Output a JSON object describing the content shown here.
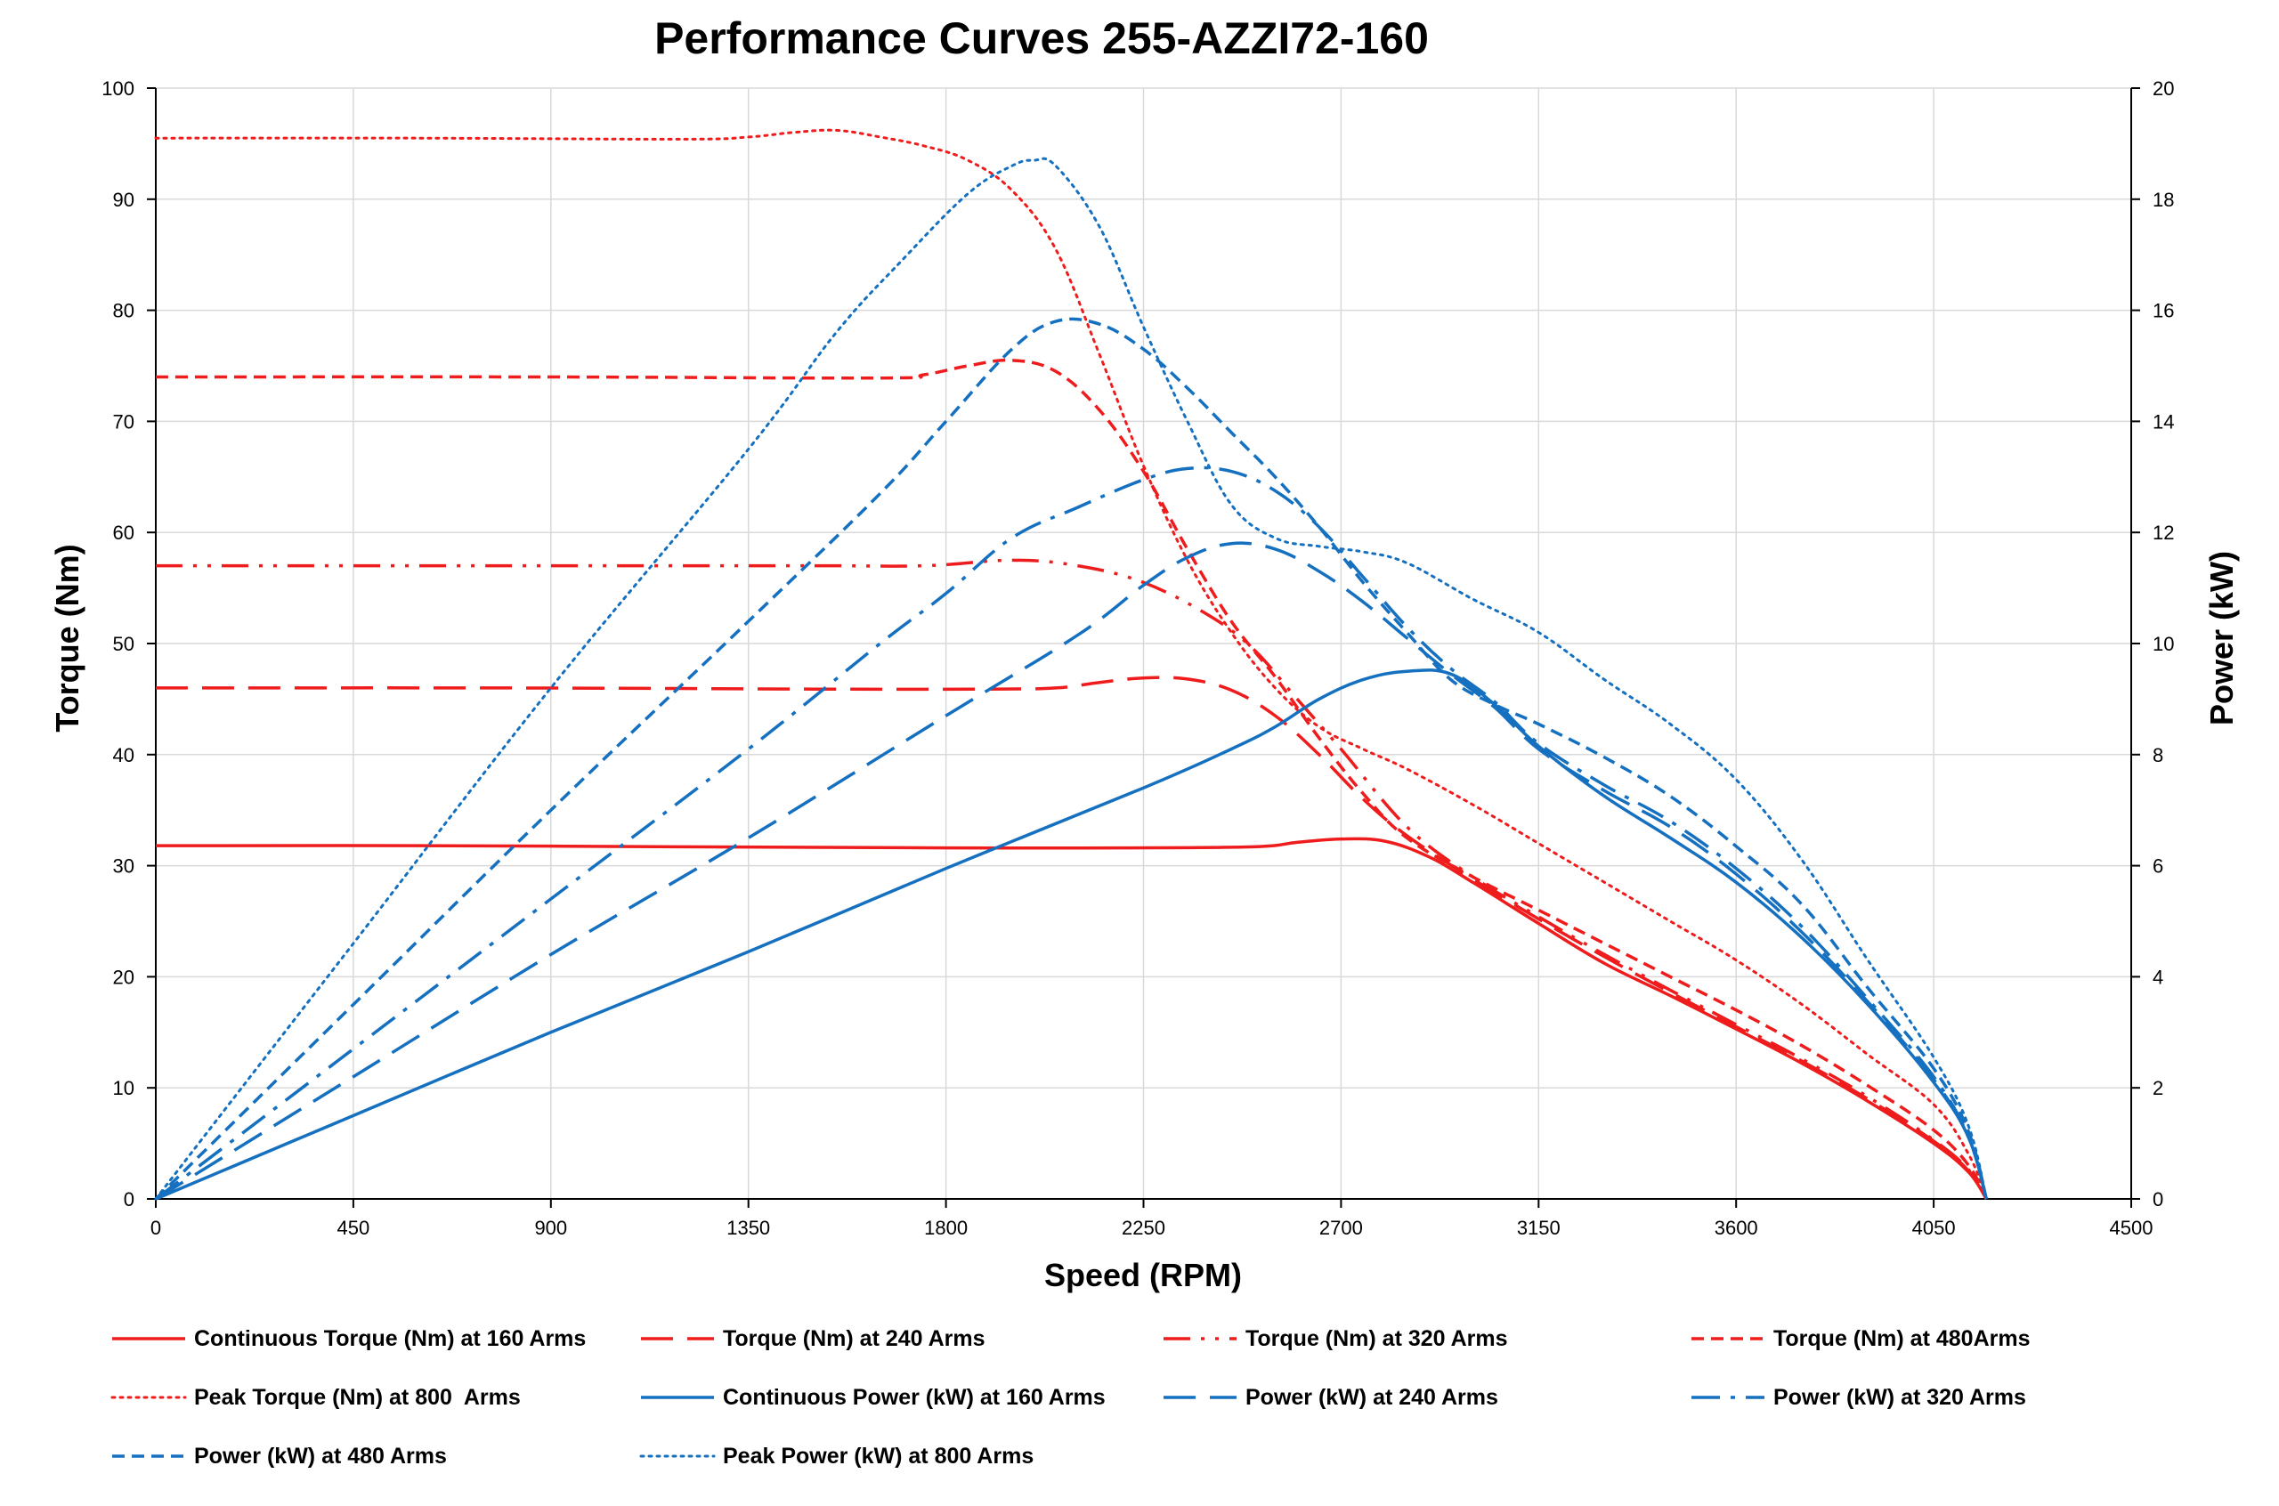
{
  "chart_data": {
    "type": "line",
    "title": "Performance Curves 255-AZZI72-160",
    "xlabel": "Speed (RPM)",
    "ylabel": "Torque (Nm)",
    "y2label": "Power (kW)",
    "xlim": [
      0,
      4500
    ],
    "ylim": [
      0,
      100
    ],
    "y2lim": [
      0,
      20
    ],
    "x_ticks": [
      "0",
      "450",
      "900",
      "1350",
      "1800",
      "2250",
      "2700",
      "3150",
      "3600",
      "4050",
      "4500"
    ],
    "y_ticks": [
      "0",
      "10",
      "20",
      "30",
      "40",
      "50",
      "60",
      "70",
      "80",
      "90",
      "100"
    ],
    "y2_ticks": [
      "0",
      "2",
      "4",
      "6",
      "8",
      "10",
      "12",
      "14",
      "16",
      "18",
      "20"
    ],
    "grid": true,
    "legend_position": "bottom",
    "colors": {
      "torque": "#ee1c1c",
      "power": "#1570c0"
    },
    "series": [
      {
        "name": "Continuous Torque (Nm) at 160 Arms",
        "axis": "left",
        "color": "#ee1c1c",
        "dash": "solid",
        "points": [
          [
            0,
            31.8
          ],
          [
            600,
            31.8
          ],
          [
            1200,
            31.7
          ],
          [
            1800,
            31.6
          ],
          [
            2200,
            31.6
          ],
          [
            2500,
            31.7
          ],
          [
            2600,
            32.1
          ],
          [
            2700,
            32.4
          ],
          [
            2800,
            32.2
          ],
          [
            2900,
            30.8
          ],
          [
            3000,
            28.5
          ],
          [
            3150,
            24.8
          ],
          [
            3300,
            21.2
          ],
          [
            3450,
            18.3
          ],
          [
            3600,
            15.3
          ],
          [
            3750,
            12.2
          ],
          [
            3900,
            8.8
          ],
          [
            4050,
            5
          ],
          [
            4130,
            2.4
          ],
          [
            4170,
            0
          ]
        ]
      },
      {
        "name": "Torque (Nm) at 240 Arms",
        "axis": "left",
        "color": "#ee1c1c",
        "dash": "longdash",
        "points": [
          [
            0,
            46
          ],
          [
            800,
            46
          ],
          [
            1500,
            45.9
          ],
          [
            1900,
            45.9
          ],
          [
            2050,
            46
          ],
          [
            2150,
            46.5
          ],
          [
            2250,
            46.9
          ],
          [
            2350,
            46.8
          ],
          [
            2450,
            45.8
          ],
          [
            2550,
            43.5
          ],
          [
            2650,
            40
          ],
          [
            2750,
            36
          ],
          [
            2850,
            32.7
          ],
          [
            3000,
            28.8
          ],
          [
            3150,
            25.2
          ],
          [
            3300,
            21.8
          ],
          [
            3450,
            18.6
          ],
          [
            3600,
            15.5
          ],
          [
            3750,
            12.4
          ],
          [
            3900,
            9
          ],
          [
            4050,
            5.2
          ],
          [
            4130,
            2.5
          ],
          [
            4170,
            0
          ]
        ]
      },
      {
        "name": "Torque (Nm) at 320 Arms",
        "axis": "left",
        "color": "#ee1c1c",
        "dash": "dashdotdot",
        "points": [
          [
            0,
            57
          ],
          [
            900,
            57
          ],
          [
            1500,
            57
          ],
          [
            1750,
            57
          ],
          [
            1950,
            57.5
          ],
          [
            2100,
            57
          ],
          [
            2250,
            55.5
          ],
          [
            2400,
            52.5
          ],
          [
            2500,
            49.5
          ],
          [
            2600,
            45
          ],
          [
            2700,
            40.5
          ],
          [
            2850,
            33.5
          ],
          [
            3000,
            29
          ],
          [
            3150,
            25.4
          ],
          [
            3300,
            22
          ],
          [
            3450,
            18.8
          ],
          [
            3600,
            15.7
          ],
          [
            3750,
            12.6
          ],
          [
            3900,
            9.2
          ],
          [
            4050,
            5.3
          ],
          [
            4130,
            2.6
          ],
          [
            4170,
            0
          ]
        ]
      },
      {
        "name": "Torque (Nm) at 480Arms",
        "axis": "left",
        "color": "#ee1c1c",
        "dash": "shortdash",
        "points": [
          [
            0,
            74
          ],
          [
            900,
            74
          ],
          [
            1650,
            73.9
          ],
          [
            1750,
            74.2
          ],
          [
            1850,
            75
          ],
          [
            1950,
            75.5
          ],
          [
            2050,
            74.5
          ],
          [
            2150,
            71
          ],
          [
            2250,
            65.5
          ],
          [
            2350,
            58.5
          ],
          [
            2450,
            52
          ],
          [
            2550,
            47
          ],
          [
            2650,
            41.5
          ],
          [
            2750,
            36.5
          ],
          [
            2850,
            32.5
          ],
          [
            3000,
            29
          ],
          [
            3150,
            26
          ],
          [
            3300,
            23
          ],
          [
            3450,
            20
          ],
          [
            3600,
            17
          ],
          [
            3750,
            13.8
          ],
          [
            3900,
            10.2
          ],
          [
            4050,
            6.2
          ],
          [
            4130,
            3
          ],
          [
            4170,
            0
          ]
        ]
      },
      {
        "name": "Peak Torque (Nm) at 800  Arms",
        "axis": "left",
        "color": "#ee1c1c",
        "dash": "dotted",
        "points": [
          [
            0,
            95.5
          ],
          [
            600,
            95.5
          ],
          [
            1200,
            95.4
          ],
          [
            1350,
            95.6
          ],
          [
            1450,
            96
          ],
          [
            1550,
            96.2
          ],
          [
            1650,
            95.6
          ],
          [
            1750,
            94.8
          ],
          [
            1850,
            93.5
          ],
          [
            1950,
            90.8
          ],
          [
            2050,
            85.5
          ],
          [
            2150,
            76
          ],
          [
            2250,
            66
          ],
          [
            2350,
            57.5
          ],
          [
            2450,
            51
          ],
          [
            2550,
            46
          ],
          [
            2650,
            42.5
          ],
          [
            2750,
            40.5
          ],
          [
            2850,
            38.7
          ],
          [
            3000,
            35.5
          ],
          [
            3150,
            32
          ],
          [
            3300,
            28.5
          ],
          [
            3450,
            25
          ],
          [
            3600,
            21.5
          ],
          [
            3750,
            17.5
          ],
          [
            3900,
            13
          ],
          [
            4050,
            8.5
          ],
          [
            4130,
            4
          ],
          [
            4170,
            0
          ]
        ]
      },
      {
        "name": "Continuous Power (kW) at 160 Arms",
        "axis": "right",
        "color": "#1570c0",
        "dash": "solid",
        "points": [
          [
            0,
            0
          ],
          [
            450,
            1.5
          ],
          [
            900,
            3
          ],
          [
            1350,
            4.45
          ],
          [
            1800,
            5.95
          ],
          [
            2250,
            7.4
          ],
          [
            2450,
            8.1
          ],
          [
            2550,
            8.5
          ],
          [
            2650,
            9
          ],
          [
            2750,
            9.35
          ],
          [
            2850,
            9.5
          ],
          [
            2950,
            9.45
          ],
          [
            3050,
            8.9
          ],
          [
            3150,
            8.15
          ],
          [
            3300,
            7.25
          ],
          [
            3450,
            6.5
          ],
          [
            3600,
            5.7
          ],
          [
            3750,
            4.7
          ],
          [
            3900,
            3.5
          ],
          [
            4050,
            2.1
          ],
          [
            4130,
            1.1
          ],
          [
            4170,
            0
          ]
        ]
      },
      {
        "name": "Power (kW) at 240 Arms",
        "axis": "right",
        "color": "#1570c0",
        "dash": "longdash",
        "points": [
          [
            0,
            0
          ],
          [
            450,
            2.2
          ],
          [
            900,
            4.4
          ],
          [
            1350,
            6.5
          ],
          [
            1800,
            8.7
          ],
          [
            2100,
            10.15
          ],
          [
            2250,
            11.05
          ],
          [
            2350,
            11.55
          ],
          [
            2450,
            11.8
          ],
          [
            2550,
            11.7
          ],
          [
            2650,
            11.3
          ],
          [
            2750,
            10.75
          ],
          [
            2850,
            10.1
          ],
          [
            2950,
            9.45
          ],
          [
            3050,
            8.85
          ],
          [
            3150,
            8.1
          ],
          [
            3300,
            7.35
          ],
          [
            3450,
            6.7
          ],
          [
            3600,
            5.85
          ],
          [
            3750,
            4.8
          ],
          [
            3900,
            3.55
          ],
          [
            4050,
            2.15
          ],
          [
            4130,
            1.1
          ],
          [
            4170,
            0
          ]
        ]
      },
      {
        "name": "Power (kW) at 320 Arms",
        "axis": "right",
        "color": "#1570c0",
        "dash": "dashdot",
        "points": [
          [
            0,
            0
          ],
          [
            450,
            2.7
          ],
          [
            900,
            5.4
          ],
          [
            1350,
            8.1
          ],
          [
            1650,
            10
          ],
          [
            1800,
            10.9
          ],
          [
            1950,
            11.9
          ],
          [
            2100,
            12.45
          ],
          [
            2250,
            12.95
          ],
          [
            2350,
            13.15
          ],
          [
            2450,
            13.1
          ],
          [
            2550,
            12.75
          ],
          [
            2650,
            12.1
          ],
          [
            2750,
            11.2
          ],
          [
            2850,
            10.3
          ],
          [
            2950,
            9.55
          ],
          [
            3050,
            8.95
          ],
          [
            3150,
            8.2
          ],
          [
            3300,
            7.45
          ],
          [
            3450,
            6.8
          ],
          [
            3600,
            5.95
          ],
          [
            3750,
            4.9
          ],
          [
            3900,
            3.6
          ],
          [
            4050,
            2.2
          ],
          [
            4130,
            1.1
          ],
          [
            4170,
            0
          ]
        ]
      },
      {
        "name": "Power (kW) at 480 Arms",
        "axis": "right",
        "color": "#1570c0",
        "dash": "shortdash",
        "points": [
          [
            0,
            0
          ],
          [
            450,
            3.5
          ],
          [
            900,
            7
          ],
          [
            1350,
            10.4
          ],
          [
            1650,
            12.7
          ],
          [
            1800,
            14
          ],
          [
            1950,
            15.3
          ],
          [
            2050,
            15.8
          ],
          [
            2150,
            15.75
          ],
          [
            2250,
            15.3
          ],
          [
            2350,
            14.6
          ],
          [
            2450,
            13.8
          ],
          [
            2550,
            13
          ],
          [
            2650,
            12.1
          ],
          [
            2750,
            11.1
          ],
          [
            2850,
            10.2
          ],
          [
            2950,
            9.35
          ],
          [
            3050,
            8.9
          ],
          [
            3150,
            8.55
          ],
          [
            3300,
            7.95
          ],
          [
            3450,
            7.25
          ],
          [
            3600,
            6.35
          ],
          [
            3750,
            5.3
          ],
          [
            3900,
            3.8
          ],
          [
            4050,
            2.35
          ],
          [
            4130,
            1.2
          ],
          [
            4170,
            0
          ]
        ]
      },
      {
        "name": "Peak Power (kW) at 800 Arms",
        "axis": "right",
        "color": "#1570c0",
        "dash": "dotted",
        "points": [
          [
            0,
            0
          ],
          [
            450,
            4.6
          ],
          [
            900,
            9.2
          ],
          [
            1350,
            13.5
          ],
          [
            1550,
            15.6
          ],
          [
            1700,
            16.9
          ],
          [
            1850,
            18.1
          ],
          [
            1950,
            18.6
          ],
          [
            2000,
            18.7
          ],
          [
            2050,
            18.6
          ],
          [
            2150,
            17.5
          ],
          [
            2250,
            15.7
          ],
          [
            2350,
            14
          ],
          [
            2450,
            12.5
          ],
          [
            2550,
            11.9
          ],
          [
            2650,
            11.75
          ],
          [
            2750,
            11.65
          ],
          [
            2850,
            11.45
          ],
          [
            3000,
            10.8
          ],
          [
            3150,
            10.2
          ],
          [
            3300,
            9.35
          ],
          [
            3450,
            8.55
          ],
          [
            3600,
            7.55
          ],
          [
            3750,
            6.1
          ],
          [
            3900,
            4.3
          ],
          [
            4050,
            2.55
          ],
          [
            4130,
            1.3
          ],
          [
            4170,
            0
          ]
        ]
      }
    ]
  }
}
